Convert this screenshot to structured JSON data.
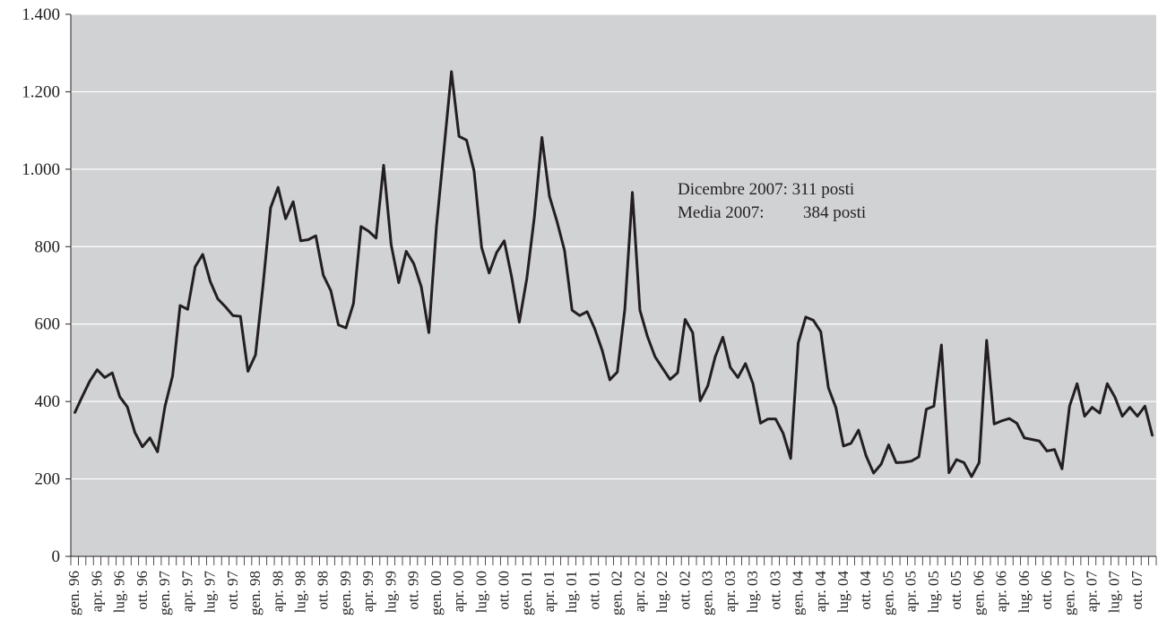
{
  "chart_data": {
    "type": "line",
    "title": "",
    "xlabel": "",
    "ylabel": "",
    "ylim": [
      0,
      1400
    ],
    "yticks": [
      0,
      200,
      400,
      600,
      800,
      1000,
      1200,
      1400
    ],
    "ytick_labels": [
      "0",
      "200",
      "400",
      "600",
      "800",
      "1.000",
      "1.200",
      "1.400"
    ],
    "grid": "horizontal",
    "colors": {
      "plot_background": "#d1d2d4",
      "gridline": "#ffffff",
      "line": "#231f20",
      "axis": "#231f20"
    },
    "x": [
      "gen. 96",
      "feb. 96",
      "mar. 96",
      "apr. 96",
      "mag. 96",
      "giu. 96",
      "lug. 96",
      "ago. 96",
      "set. 96",
      "ott. 96",
      "nov. 96",
      "dic. 96",
      "gen. 97",
      "feb. 97",
      "mar. 97",
      "apr. 97",
      "mag. 97",
      "giu. 97",
      "lug. 97",
      "ago. 97",
      "set. 97",
      "ott. 97",
      "nov. 97",
      "dic. 97",
      "gen. 98",
      "feb. 98",
      "mar. 98",
      "apr. 98",
      "mag. 98",
      "giu. 98",
      "lug. 98",
      "ago. 98",
      "set. 98",
      "ott. 98",
      "nov. 98",
      "dic. 98",
      "gen. 99",
      "feb. 99",
      "mar. 99",
      "apr. 99",
      "mag. 99",
      "giu. 99",
      "lug. 99",
      "ago. 99",
      "set. 99",
      "ott. 99",
      "nov. 99",
      "dic. 99",
      "gen. 00",
      "feb. 00",
      "mar. 00",
      "apr. 00",
      "mag. 00",
      "giu. 00",
      "lug. 00",
      "ago. 00",
      "set. 00",
      "ott. 00",
      "nov. 00",
      "dic. 00",
      "gen. 01",
      "feb. 01",
      "mar. 01",
      "apr. 01",
      "mag. 01",
      "giu. 01",
      "lug. 01",
      "ago. 01",
      "set. 01",
      "ott. 01",
      "nov. 01",
      "dic. 01",
      "gen. 02",
      "feb. 02",
      "mar. 02",
      "apr. 02",
      "mag. 02",
      "giu. 02",
      "lug. 02",
      "ago. 02",
      "set. 02",
      "ott. 02",
      "nov. 02",
      "dic. 02",
      "gen. 03",
      "feb. 03",
      "mar. 03",
      "apr. 03",
      "mag. 03",
      "giu. 03",
      "lug. 03",
      "ago. 03",
      "set. 03",
      "ott. 03",
      "nov. 03",
      "dic. 03",
      "gen. 04",
      "feb. 04",
      "mar. 04",
      "apr. 04",
      "mag. 04",
      "giu. 04",
      "lug. 04",
      "ago. 04",
      "set. 04",
      "ott. 04",
      "nov. 04",
      "dic. 04",
      "gen. 05",
      "feb. 05",
      "mar. 05",
      "apr. 05",
      "mag. 05",
      "giu. 05",
      "lug. 05",
      "ago. 05",
      "set. 05",
      "ott. 05",
      "nov. 05",
      "dic. 05",
      "gen. 06",
      "feb. 06",
      "mar. 06",
      "apr. 06",
      "mag. 06",
      "giu. 06",
      "lug. 06",
      "ago. 06",
      "set. 06",
      "ott. 06",
      "nov. 06",
      "dic. 06",
      "gen. 07",
      "feb. 07",
      "mar. 07",
      "apr. 07",
      "mag. 07",
      "giu. 07",
      "lug. 07",
      "ago. 07",
      "set. 07",
      "ott. 07",
      "nov. 07",
      "dic. 07"
    ],
    "xtick_labels": [
      "gen. 96",
      "apr. 96",
      "lug. 96",
      "ott. 96",
      "gen. 97",
      "apr. 97",
      "lug. 97",
      "ott. 97",
      "gen. 98",
      "apr. 98",
      "lug. 98",
      "ott. 98",
      "gen. 99",
      "apr. 99",
      "lug. 99",
      "ott. 99",
      "gen. 00",
      "apr. 00",
      "lug. 00",
      "ott. 00",
      "gen. 01",
      "apr. 01",
      "lug. 01",
      "ott. 01",
      "gen. 02",
      "apr. 02",
      "lug. 02",
      "ott. 02",
      "gen. 03",
      "apr. 03",
      "lug. 03",
      "ott. 03",
      "gen. 04",
      "apr. 04",
      "lug. 04",
      "ott. 04",
      "gen. 05",
      "apr. 05",
      "lug. 05",
      "ott. 05",
      "gen. 06",
      "apr. 06",
      "lug. 06",
      "ott. 06",
      "gen. 07",
      "apr. 07",
      "lug. 07",
      "ott. 07"
    ],
    "series": [
      {
        "values": [
          370,
          412,
          452,
          482,
          462,
          474,
          412,
          386,
          320,
          283,
          306,
          270,
          388,
          466,
          648,
          638,
          748,
          780,
          710,
          665,
          645,
          622,
          620,
          478,
          520,
          700,
          900,
          953,
          872,
          916,
          815,
          818,
          828,
          726,
          686,
          598,
          590,
          653,
          852,
          840,
          822,
          1010,
          805,
          707,
          788,
          756,
          696,
          578,
          850,
          1050,
          1252,
          1085,
          1075,
          995,
          798,
          732,
          785,
          815,
          720,
          605,
          718,
          877,
          1082,
          930,
          865,
          790,
          636,
          622,
          632,
          588,
          532,
          456,
          476,
          638,
          940,
          636,
          568,
          516,
          486,
          457,
          474,
          612,
          578,
          402,
          440,
          516,
          566,
          488,
          462,
          498,
          446,
          344,
          355,
          355,
          318,
          253,
          551,
          618,
          610,
          580,
          436,
          384,
          285,
          292,
          326,
          260,
          215,
          238,
          288,
          242,
          243,
          246,
          257,
          380,
          388,
          546,
          216,
          250,
          242,
          206,
          242,
          558,
          342,
          350,
          356,
          344,
          306,
          302,
          298,
          272,
          276,
          226,
          388,
          446,
          362,
          385,
          370,
          446,
          412,
          362,
          385,
          362,
          388,
          311
        ]
      }
    ],
    "annotations": [
      "Dicembre 2007: 311 posti",
      "Media 2007:",
      "384 posti"
    ]
  }
}
